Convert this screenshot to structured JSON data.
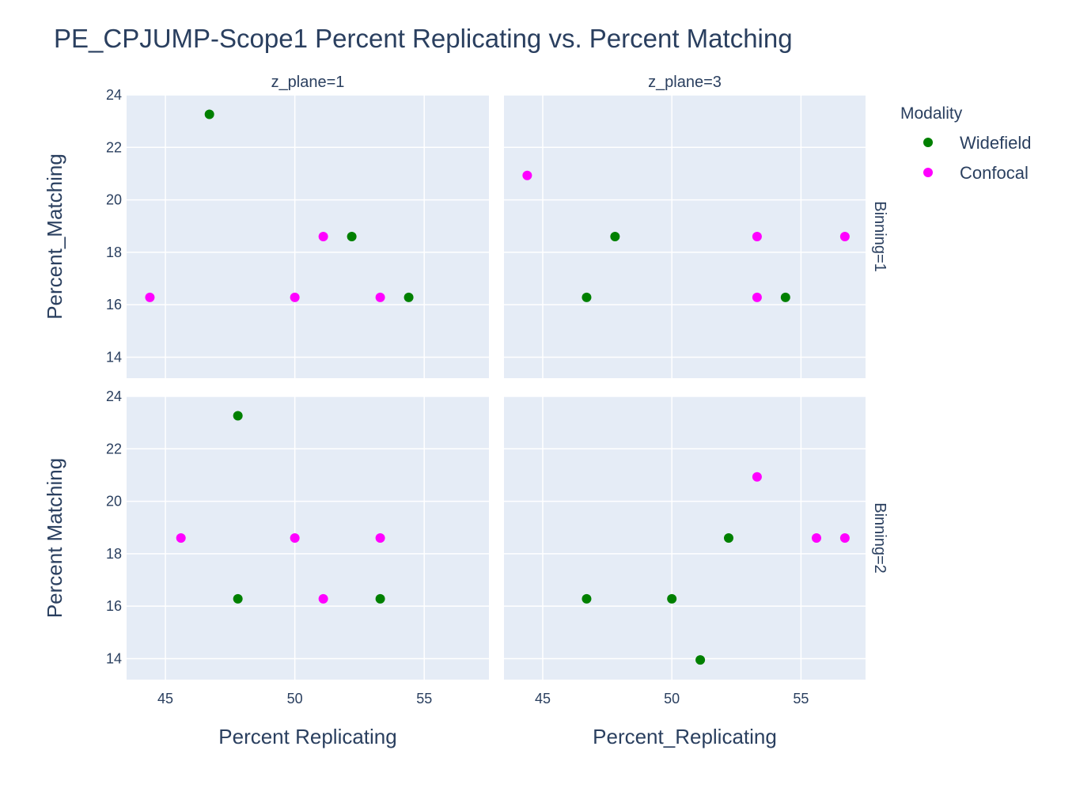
{
  "chart_data": {
    "type": "scatter",
    "title": "PE_CPJUMP-Scope1 Percent Replicating vs. Percent Matching",
    "legend": {
      "title": "Modality",
      "placement": "top-right",
      "entries": [
        {
          "name": "Widefield",
          "color": "#008000"
        },
        {
          "name": "Confocal",
          "color": "#ff00ff"
        }
      ]
    },
    "colors": {
      "plot_bg": "#e5ecf6",
      "grid": "#ffffff",
      "text": "#2a3f5f"
    },
    "grid": true,
    "xlim": [
      43.5,
      57.5
    ],
    "ylim": [
      13.2,
      24
    ],
    "xticks": [
      45,
      50,
      55
    ],
    "yticks": [
      14,
      16,
      18,
      20,
      22,
      24
    ],
    "panels": [
      {
        "col_label": "z_plane=1",
        "row_label": "",
        "xlabel": "",
        "ylabel": "Percent_Matching",
        "series": [
          {
            "name": "Widefield",
            "points": [
              [
                46.7,
                23.26
              ],
              [
                52.2,
                18.6
              ],
              [
                54.4,
                16.28
              ]
            ]
          },
          {
            "name": "Confocal",
            "points": [
              [
                44.4,
                16.28
              ],
              [
                50.0,
                16.28
              ],
              [
                51.1,
                18.6
              ],
              [
                53.3,
                16.28
              ]
            ]
          }
        ]
      },
      {
        "col_label": "z_plane=3",
        "row_label": "Binning=1",
        "xlabel": "",
        "ylabel": "",
        "series": [
          {
            "name": "Widefield",
            "points": [
              [
                46.7,
                16.28
              ],
              [
                47.8,
                18.6
              ],
              [
                54.4,
                16.28
              ]
            ]
          },
          {
            "name": "Confocal",
            "points": [
              [
                44.4,
                20.93
              ],
              [
                53.3,
                18.6
              ],
              [
                53.3,
                16.28
              ],
              [
                56.7,
                18.6
              ]
            ]
          }
        ]
      },
      {
        "col_label": "",
        "row_label": "",
        "xlabel": "Percent Replicating",
        "ylabel": "Percent Matching",
        "series": [
          {
            "name": "Widefield",
            "points": [
              [
                47.8,
                23.26
              ],
              [
                47.8,
                16.28
              ],
              [
                53.3,
                16.28
              ]
            ]
          },
          {
            "name": "Confocal",
            "points": [
              [
                45.6,
                18.6
              ],
              [
                50.0,
                18.6
              ],
              [
                51.1,
                16.28
              ],
              [
                53.3,
                18.6
              ]
            ]
          }
        ]
      },
      {
        "col_label": "",
        "row_label": "Binning=2",
        "xlabel": "Percent_Replicating",
        "ylabel": "",
        "series": [
          {
            "name": "Widefield",
            "points": [
              [
                46.7,
                16.28
              ],
              [
                50.0,
                16.28
              ],
              [
                51.1,
                13.95
              ],
              [
                52.2,
                18.6
              ]
            ]
          },
          {
            "name": "Confocal",
            "points": [
              [
                53.3,
                20.93
              ],
              [
                55.6,
                18.6
              ],
              [
                56.7,
                18.6
              ]
            ]
          }
        ]
      }
    ]
  }
}
